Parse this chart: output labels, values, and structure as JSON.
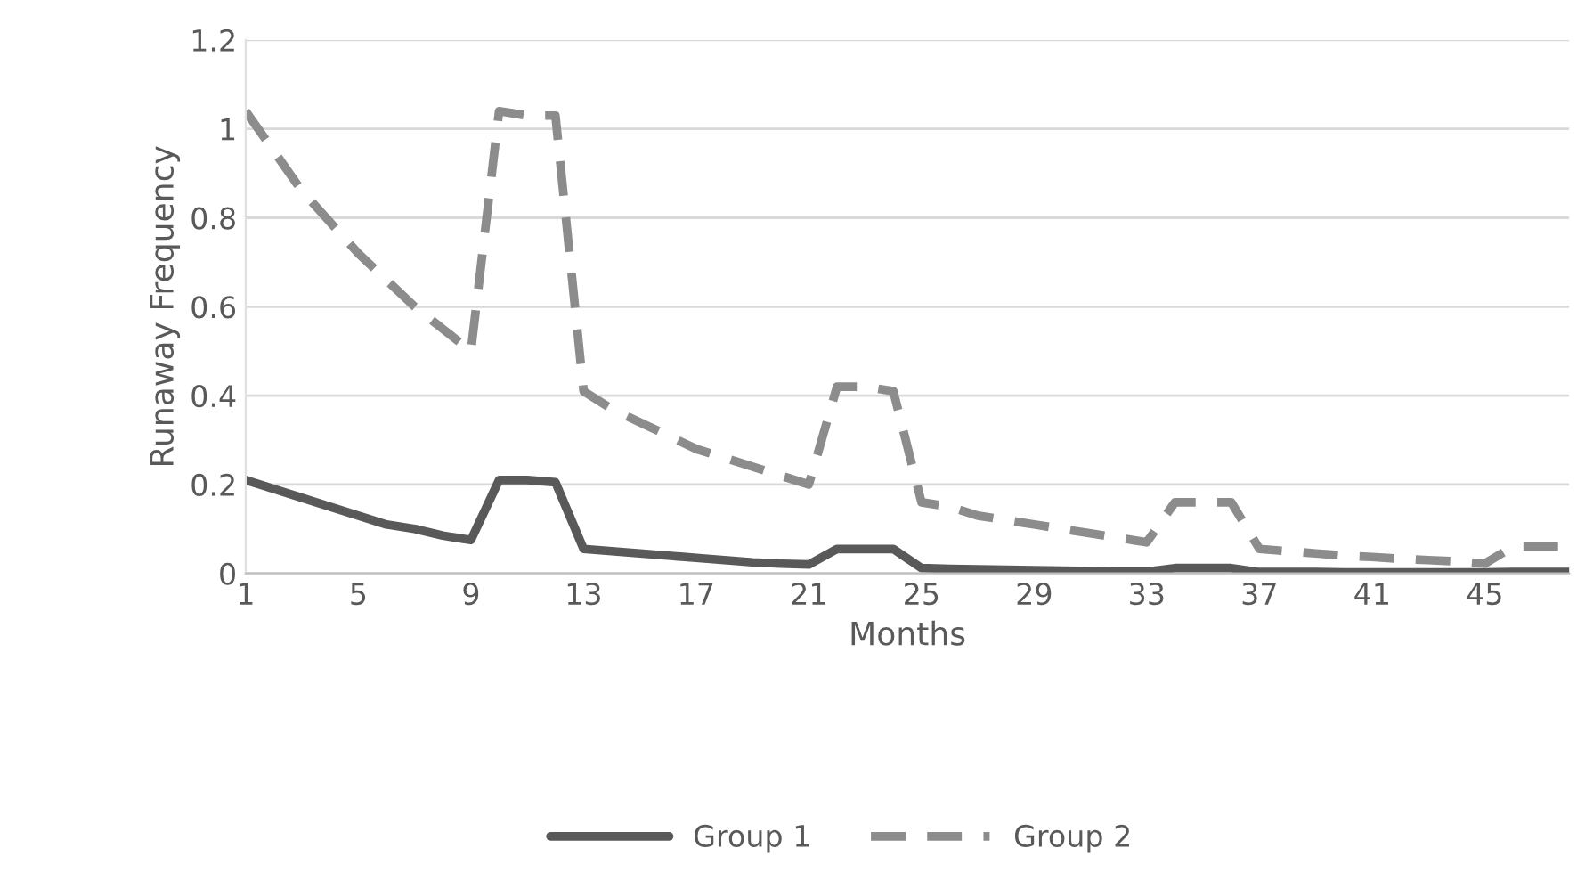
{
  "chart_data": {
    "type": "line",
    "xlabel": "Months",
    "ylabel": "Runaway Frequency",
    "x": [
      1,
      2,
      3,
      4,
      5,
      6,
      7,
      8,
      9,
      10,
      11,
      12,
      13,
      14,
      15,
      16,
      17,
      18,
      19,
      20,
      21,
      22,
      23,
      24,
      25,
      26,
      27,
      28,
      29,
      30,
      31,
      32,
      33,
      34,
      35,
      36,
      37,
      38,
      39,
      40,
      41,
      42,
      43,
      44,
      45,
      46,
      47,
      48
    ],
    "series": [
      {
        "name": "Group 1",
        "color": "#595959",
        "line_style": "solid",
        "values": [
          0.21,
          0.19,
          0.17,
          0.15,
          0.13,
          0.11,
          0.1,
          0.085,
          0.075,
          0.21,
          0.21,
          0.205,
          0.055,
          0.05,
          0.045,
          0.04,
          0.035,
          0.03,
          0.025,
          0.022,
          0.02,
          0.055,
          0.055,
          0.055,
          0.012,
          0.01,
          0.009,
          0.008,
          0.007,
          0.006,
          0.005,
          0.004,
          0.004,
          0.012,
          0.012,
          0.012,
          0.003,
          0.003,
          0.003,
          0.002,
          0.002,
          0.002,
          0.002,
          0.002,
          0.002,
          0.003,
          0.003,
          0.003
        ]
      },
      {
        "name": "Group 2",
        "color": "#8c8c8c",
        "line_style": "dashed",
        "values": [
          1.04,
          0.95,
          0.86,
          0.79,
          0.72,
          0.66,
          0.6,
          0.55,
          0.5,
          1.04,
          1.03,
          1.03,
          0.41,
          0.37,
          0.34,
          0.31,
          0.28,
          0.26,
          0.24,
          0.22,
          0.2,
          0.42,
          0.42,
          0.41,
          0.16,
          0.15,
          0.13,
          0.12,
          0.11,
          0.1,
          0.09,
          0.08,
          0.07,
          0.16,
          0.16,
          0.16,
          0.055,
          0.05,
          0.045,
          0.04,
          0.037,
          0.033,
          0.03,
          0.027,
          0.022,
          0.06,
          0.06,
          0.06
        ]
      }
    ],
    "xlim": [
      1,
      48
    ],
    "xticks": [
      1,
      5,
      9,
      13,
      17,
      21,
      25,
      29,
      33,
      37,
      41,
      45
    ],
    "ylim": [
      0,
      1.2
    ],
    "yticks": [
      0,
      0.2,
      0.4,
      0.6,
      0.8,
      1,
      1.2
    ],
    "grid": "y",
    "legend": "bottom",
    "marker": "none"
  }
}
